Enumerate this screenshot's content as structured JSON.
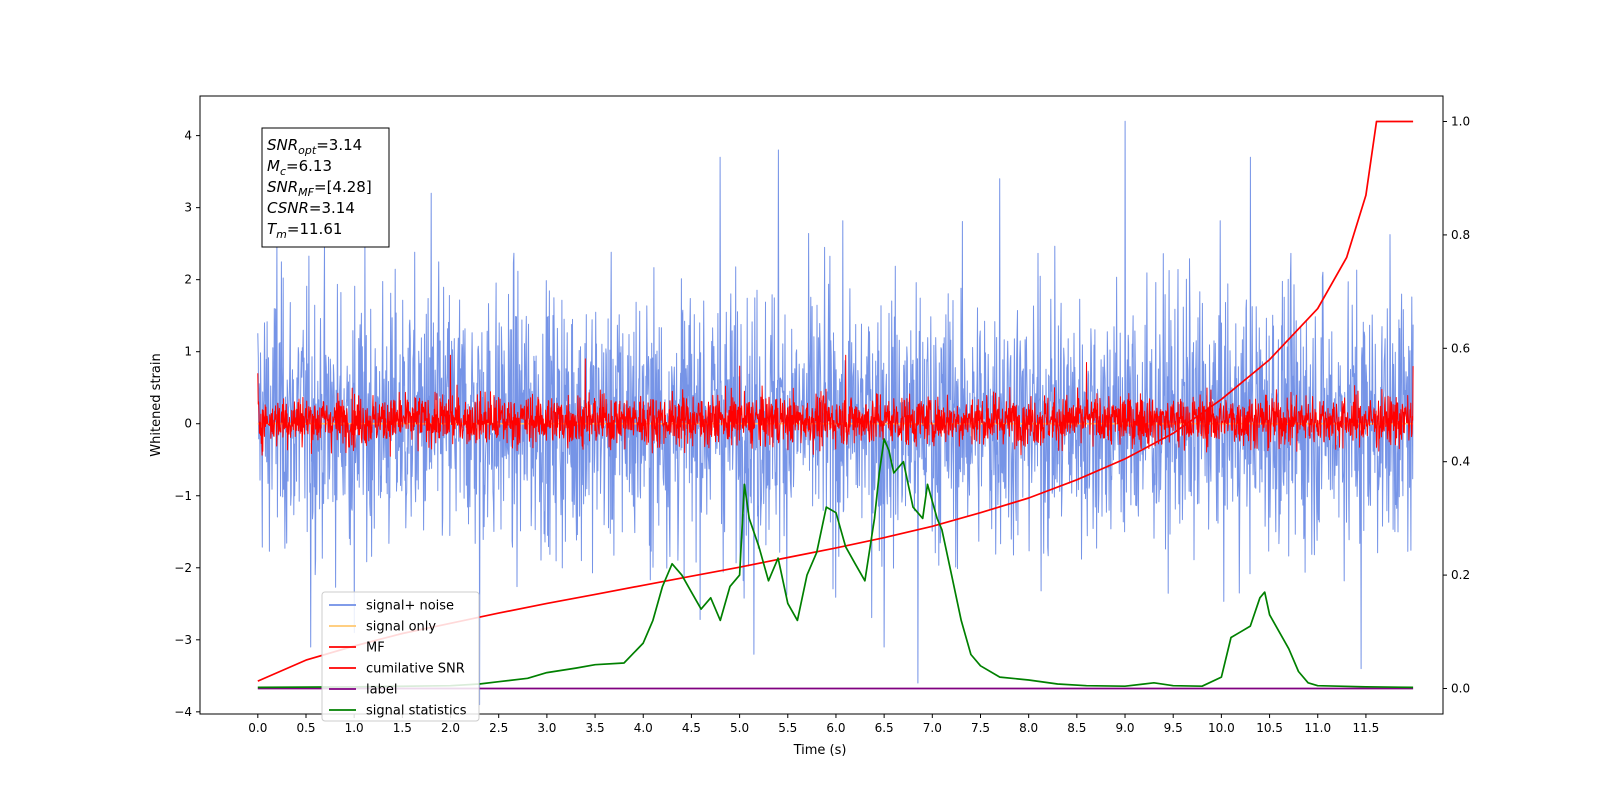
{
  "chart_data": {
    "type": "line",
    "xlabel": "Time (s)",
    "ylabel": "Whitened strain",
    "xlim": [
      -0.6,
      12.3
    ],
    "ylim": [
      -4.03,
      4.55
    ],
    "ylim_right": [
      -0.045,
      1.045
    ],
    "x_ticks": [
      0.0,
      0.5,
      1.0,
      1.5,
      2.0,
      2.5,
      3.0,
      3.5,
      4.0,
      4.5,
      5.0,
      5.5,
      6.0,
      6.5,
      7.0,
      7.5,
      8.0,
      8.5,
      9.0,
      9.5,
      10.0,
      10.5,
      11.0,
      11.5
    ],
    "x_tick_labels": [
      "0.0",
      "0.5",
      "1.0",
      "1.5",
      "2.0",
      "2.5",
      "3.0",
      "3.5",
      "4.0",
      "4.5",
      "5.0",
      "5.5",
      "6.0",
      "6.5",
      "7.0",
      "7.5",
      "8.0",
      "8.5",
      "9.0",
      "9.5",
      "10.0",
      "10.5",
      "11.0",
      "11.5"
    ],
    "y_ticks": [
      -4,
      -3,
      -2,
      -1,
      0,
      1,
      2,
      3,
      4
    ],
    "y_tick_labels": [
      "−4",
      "−3",
      "−2",
      "−1",
      "0",
      "1",
      "2",
      "3",
      "4"
    ],
    "y_right_ticks": [
      0.0,
      0.2,
      0.4,
      0.6,
      0.8,
      1.0
    ],
    "y_right_tick_labels": [
      "0.0",
      "0.2",
      "0.4",
      "0.6",
      "0.8",
      "1.0"
    ],
    "grid": false,
    "legend_position": "bottom-left",
    "annotation": {
      "lines": [
        {
          "base": "SNR",
          "sub": "opt",
          "value": "=3.14"
        },
        {
          "base": "M",
          "sub": "c",
          "value": "=6.13"
        },
        {
          "base": "SNR",
          "sub": "MF",
          "value": "=[4.28]"
        },
        {
          "base": "CSNR",
          "sub": "",
          "value": "=3.14"
        },
        {
          "base": "T",
          "sub": "m",
          "value": "=11.61"
        }
      ]
    },
    "series": [
      {
        "name": "signal+ noise",
        "axis": "left",
        "color": "#6f8ee6",
        "x_range": [
          0.0,
          11.99
        ],
        "envelope_typical": [
          -2.0,
          2.1
        ],
        "peaks": [
          [
            0.2,
            2.6
          ],
          [
            0.55,
            -3.1
          ],
          [
            1.0,
            -2.9
          ],
          [
            1.8,
            3.2
          ],
          [
            2.3,
            -3.9
          ],
          [
            4.8,
            3.7
          ],
          [
            5.15,
            -3.2
          ],
          [
            5.4,
            3.8
          ],
          [
            6.5,
            -3.1
          ],
          [
            6.85,
            -3.6
          ],
          [
            7.7,
            3.4
          ],
          [
            9.0,
            4.2
          ],
          [
            10.3,
            3.7
          ],
          [
            11.45,
            -3.4
          ]
        ]
      },
      {
        "name": "signal only",
        "axis": "left",
        "color": "#ffc870",
        "x": [
          0.0,
          11.99
        ],
        "y": [
          0.0,
          0.0
        ]
      },
      {
        "name": "MF",
        "axis": "left",
        "color": "#ff0000",
        "x_range": [
          0.0,
          11.99
        ],
        "envelope_typical": [
          -0.35,
          0.45
        ],
        "peaks": [
          [
            0.0,
            0.7
          ],
          [
            2.0,
            0.95
          ],
          [
            3.4,
            0.9
          ],
          [
            5.0,
            0.8
          ],
          [
            6.1,
            0.95
          ],
          [
            8.6,
            0.85
          ],
          [
            11.99,
            0.8
          ]
        ]
      },
      {
        "name": "cumilative SNR",
        "axis": "right",
        "color": "#ff0000",
        "x": [
          0.0,
          0.5,
          1.0,
          1.5,
          2.0,
          2.5,
          3.0,
          3.5,
          4.0,
          4.5,
          5.0,
          5.5,
          6.0,
          6.5,
          7.0,
          7.5,
          8.0,
          8.5,
          9.0,
          9.5,
          10.0,
          10.5,
          11.0,
          11.3,
          11.5,
          11.61,
          11.99
        ],
        "y": [
          0.013,
          0.05,
          0.075,
          0.097,
          0.115,
          0.133,
          0.15,
          0.166,
          0.182,
          0.198,
          0.214,
          0.231,
          0.248,
          0.266,
          0.286,
          0.31,
          0.336,
          0.368,
          0.405,
          0.45,
          0.51,
          0.58,
          0.67,
          0.76,
          0.87,
          1.0,
          1.0
        ]
      },
      {
        "name": "label",
        "axis": "right",
        "color": "#800080",
        "x": [
          0.0,
          11.99
        ],
        "y": [
          0.0,
          0.0
        ]
      },
      {
        "name": "signal statistics",
        "axis": "right",
        "color": "#008000",
        "x": [
          0.0,
          1.0,
          2.0,
          2.3,
          2.5,
          2.8,
          3.0,
          3.3,
          3.5,
          3.8,
          4.0,
          4.1,
          4.2,
          4.3,
          4.4,
          4.5,
          4.6,
          4.7,
          4.8,
          4.9,
          5.0,
          5.05,
          5.1,
          5.2,
          5.3,
          5.4,
          5.5,
          5.6,
          5.7,
          5.8,
          5.9,
          6.0,
          6.1,
          6.2,
          6.3,
          6.4,
          6.45,
          6.5,
          6.55,
          6.6,
          6.7,
          6.8,
          6.9,
          6.95,
          7.0,
          7.05,
          7.1,
          7.2,
          7.3,
          7.4,
          7.5,
          7.7,
          8.0,
          8.3,
          8.6,
          9.0,
          9.3,
          9.5,
          9.8,
          10.0,
          10.1,
          10.2,
          10.3,
          10.4,
          10.45,
          10.5,
          10.6,
          10.7,
          10.8,
          10.9,
          11.0,
          11.5,
          11.99
        ],
        "y": [
          0.002,
          0.003,
          0.005,
          0.008,
          0.012,
          0.018,
          0.028,
          0.036,
          0.042,
          0.045,
          0.08,
          0.12,
          0.18,
          0.22,
          0.2,
          0.17,
          0.14,
          0.16,
          0.12,
          0.18,
          0.2,
          0.36,
          0.3,
          0.25,
          0.19,
          0.23,
          0.15,
          0.12,
          0.2,
          0.24,
          0.32,
          0.31,
          0.25,
          0.22,
          0.19,
          0.3,
          0.38,
          0.44,
          0.42,
          0.38,
          0.4,
          0.32,
          0.3,
          0.36,
          0.33,
          0.3,
          0.28,
          0.2,
          0.12,
          0.06,
          0.04,
          0.02,
          0.015,
          0.008,
          0.005,
          0.004,
          0.01,
          0.005,
          0.004,
          0.02,
          0.09,
          0.1,
          0.11,
          0.16,
          0.17,
          0.13,
          0.1,
          0.07,
          0.03,
          0.01,
          0.005,
          0.003,
          0.002
        ]
      }
    ]
  }
}
